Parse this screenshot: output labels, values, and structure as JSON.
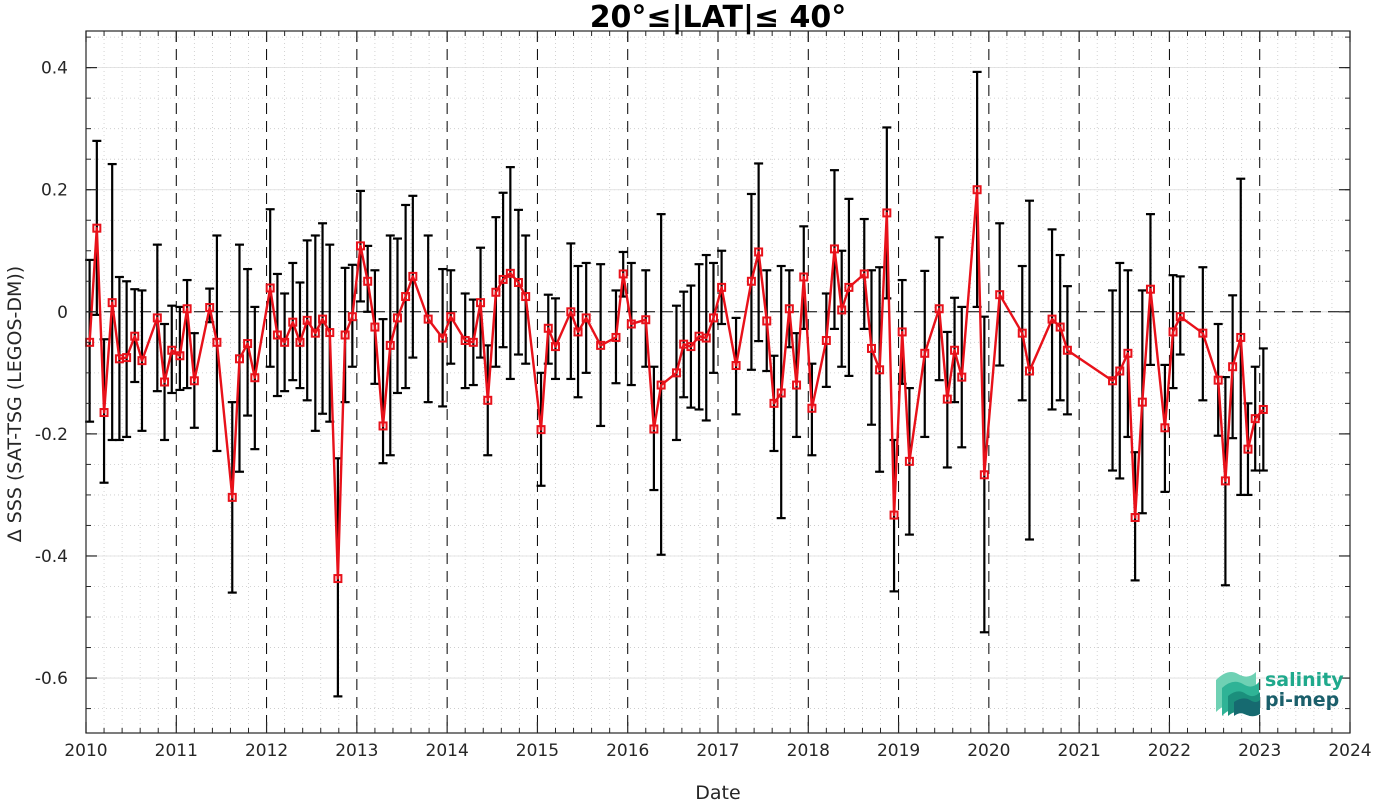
{
  "chart_data": {
    "type": "line",
    "title": "20°≤|LAT|≤ 40°",
    "xlabel": "Date",
    "ylabel": "Δ SSS (SAT-TSG (LEGOS-DM))",
    "xlim": [
      2010,
      2024
    ],
    "ylim": [
      -0.69,
      0.46
    ],
    "x_ticks": [
      2010,
      2011,
      2012,
      2013,
      2014,
      2015,
      2016,
      2017,
      2018,
      2019,
      2020,
      2021,
      2022,
      2023,
      2024
    ],
    "x_tick_labels": [
      "2010",
      "2011",
      "2012",
      "2013",
      "2014",
      "2015",
      "2016",
      "2017",
      "2018",
      "2019",
      "2020",
      "2021",
      "2022",
      "2023",
      "2024"
    ],
    "y_ticks": [
      -0.6,
      -0.4,
      -0.2,
      0,
      0.2,
      0.4
    ],
    "y_tick_labels": [
      "-0.6",
      "-0.4",
      "-0.2",
      "0",
      "0.2",
      "0.4"
    ],
    "grid": "minor dotted, dashed verticals at each year, dashed zero line",
    "series": [
      {
        "color": "#e8111a",
        "errorbar_color": "#000000",
        "points": [
          {
            "x": 2010.04,
            "y": -0.05,
            "lo": -0.18,
            "hi": 0.085
          },
          {
            "x": 2010.12,
            "y": 0.137,
            "lo": -0.005,
            "hi": 0.28
          },
          {
            "x": 2010.2,
            "y": -0.165,
            "lo": -0.28,
            "hi": -0.045
          },
          {
            "x": 2010.29,
            "y": 0.015,
            "lo": -0.21,
            "hi": 0.242
          },
          {
            "x": 2010.37,
            "y": -0.077,
            "lo": -0.21,
            "hi": 0.057
          },
          {
            "x": 2010.45,
            "y": -0.075,
            "lo": -0.205,
            "hi": 0.05
          },
          {
            "x": 2010.54,
            "y": -0.04,
            "lo": -0.115,
            "hi": 0.037
          },
          {
            "x": 2010.62,
            "y": -0.08,
            "lo": -0.195,
            "hi": 0.035
          },
          {
            "x": 2010.79,
            "y": -0.01,
            "lo": -0.13,
            "hi": 0.11
          },
          {
            "x": 2010.87,
            "y": -0.115,
            "lo": -0.21,
            "hi": -0.02
          },
          {
            "x": 2010.95,
            "y": -0.063,
            "lo": -0.133,
            "hi": 0.01
          },
          {
            "x": 2011.04,
            "y": -0.072,
            "lo": -0.128,
            "hi": 0.008
          },
          {
            "x": 2011.12,
            "y": 0.005,
            "lo": -0.125,
            "hi": 0.052
          },
          {
            "x": 2011.2,
            "y": -0.113,
            "lo": -0.19,
            "hi": -0.035
          },
          {
            "x": 2011.37,
            "y": 0.007,
            "lo": -0.017,
            "hi": 0.038
          },
          {
            "x": 2011.45,
            "y": -0.05,
            "lo": -0.228,
            "hi": 0.125
          },
          {
            "x": 2011.62,
            "y": -0.304,
            "lo": -0.46,
            "hi": -0.148
          },
          {
            "x": 2011.7,
            "y": -0.077,
            "lo": -0.262,
            "hi": 0.11
          },
          {
            "x": 2011.79,
            "y": -0.052,
            "lo": -0.17,
            "hi": 0.07
          },
          {
            "x": 2011.87,
            "y": -0.108,
            "lo": -0.225,
            "hi": 0.008
          },
          {
            "x": 2012.04,
            "y": 0.039,
            "lo": -0.09,
            "hi": 0.168
          },
          {
            "x": 2012.12,
            "y": -0.038,
            "lo": -0.138,
            "hi": 0.062
          },
          {
            "x": 2012.2,
            "y": -0.05,
            "lo": -0.13,
            "hi": 0.03
          },
          {
            "x": 2012.29,
            "y": -0.017,
            "lo": -0.112,
            "hi": 0.08
          },
          {
            "x": 2012.37,
            "y": -0.05,
            "lo": -0.125,
            "hi": 0.048
          },
          {
            "x": 2012.45,
            "y": -0.014,
            "lo": -0.145,
            "hi": 0.117
          },
          {
            "x": 2012.54,
            "y": -0.035,
            "lo": -0.195,
            "hi": 0.125
          },
          {
            "x": 2012.62,
            "y": -0.012,
            "lo": -0.167,
            "hi": 0.145
          },
          {
            "x": 2012.7,
            "y": -0.034,
            "lo": -0.18,
            "hi": 0.11
          },
          {
            "x": 2012.79,
            "y": -0.437,
            "lo": -0.63,
            "hi": -0.24
          },
          {
            "x": 2012.87,
            "y": -0.038,
            "lo": -0.148,
            "hi": 0.072
          },
          {
            "x": 2012.95,
            "y": -0.008,
            "lo": -0.09,
            "hi": 0.077
          },
          {
            "x": 2013.04,
            "y": 0.108,
            "lo": 0.017,
            "hi": 0.198
          },
          {
            "x": 2013.12,
            "y": 0.05,
            "lo": 0.0,
            "hi": 0.108
          },
          {
            "x": 2013.2,
            "y": -0.025,
            "lo": -0.118,
            "hi": 0.068
          },
          {
            "x": 2013.29,
            "y": -0.187,
            "lo": -0.248,
            "hi": -0.012
          },
          {
            "x": 2013.37,
            "y": -0.055,
            "lo": -0.235,
            "hi": 0.125
          },
          {
            "x": 2013.45,
            "y": -0.01,
            "lo": -0.133,
            "hi": 0.12
          },
          {
            "x": 2013.54,
            "y": 0.025,
            "lo": -0.125,
            "hi": 0.175
          },
          {
            "x": 2013.62,
            "y": 0.058,
            "lo": -0.075,
            "hi": 0.19
          },
          {
            "x": 2013.79,
            "y": -0.012,
            "lo": -0.148,
            "hi": 0.125
          },
          {
            "x": 2013.95,
            "y": -0.043,
            "lo": -0.155,
            "hi": 0.07
          },
          {
            "x": 2014.04,
            "y": -0.008,
            "lo": -0.085,
            "hi": 0.068
          },
          {
            "x": 2014.2,
            "y": -0.047,
            "lo": -0.125,
            "hi": 0.03
          },
          {
            "x": 2014.29,
            "y": -0.05,
            "lo": -0.12,
            "hi": 0.02
          },
          {
            "x": 2014.37,
            "y": 0.015,
            "lo": -0.075,
            "hi": 0.105
          },
          {
            "x": 2014.45,
            "y": -0.145,
            "lo": -0.235,
            "hi": -0.055
          },
          {
            "x": 2014.54,
            "y": 0.032,
            "lo": -0.09,
            "hi": 0.155
          },
          {
            "x": 2014.62,
            "y": 0.053,
            "lo": -0.058,
            "hi": 0.195
          },
          {
            "x": 2014.7,
            "y": 0.063,
            "lo": -0.11,
            "hi": 0.237
          },
          {
            "x": 2014.79,
            "y": 0.048,
            "lo": -0.07,
            "hi": 0.167
          },
          {
            "x": 2014.87,
            "y": 0.025,
            "lo": -0.085,
            "hi": 0.125
          },
          {
            "x": 2015.04,
            "y": -0.193,
            "lo": -0.285,
            "hi": -0.1
          },
          {
            "x": 2015.12,
            "y": -0.027,
            "lo": -0.085,
            "hi": 0.028
          },
          {
            "x": 2015.2,
            "y": -0.057,
            "lo": -0.11,
            "hi": 0.022
          },
          {
            "x": 2015.37,
            "y": 0.0,
            "lo": -0.11,
            "hi": 0.112
          },
          {
            "x": 2015.45,
            "y": -0.033,
            "lo": -0.14,
            "hi": 0.075
          },
          {
            "x": 2015.54,
            "y": -0.01,
            "lo": -0.1,
            "hi": 0.08
          },
          {
            "x": 2015.7,
            "y": -0.055,
            "lo": -0.187,
            "hi": 0.078
          },
          {
            "x": 2015.87,
            "y": -0.042,
            "lo": -0.117,
            "hi": 0.035
          },
          {
            "x": 2015.95,
            "y": 0.062,
            "lo": 0.025,
            "hi": 0.098
          },
          {
            "x": 2016.04,
            "y": -0.02,
            "lo": -0.12,
            "hi": 0.08
          },
          {
            "x": 2016.2,
            "y": -0.013,
            "lo": -0.09,
            "hi": 0.068
          },
          {
            "x": 2016.29,
            "y": -0.192,
            "lo": -0.292,
            "hi": -0.09
          },
          {
            "x": 2016.37,
            "y": -0.12,
            "lo": -0.398,
            "hi": 0.16
          },
          {
            "x": 2016.54,
            "y": -0.1,
            "lo": -0.21,
            "hi": 0.01
          },
          {
            "x": 2016.62,
            "y": -0.053,
            "lo": -0.14,
            "hi": 0.033
          },
          {
            "x": 2016.7,
            "y": -0.057,
            "lo": -0.157,
            "hi": 0.043
          },
          {
            "x": 2016.79,
            "y": -0.04,
            "lo": -0.16,
            "hi": 0.078
          },
          {
            "x": 2016.87,
            "y": -0.043,
            "lo": -0.178,
            "hi": 0.093
          },
          {
            "x": 2016.95,
            "y": -0.01,
            "lo": -0.1,
            "hi": 0.08
          },
          {
            "x": 2017.04,
            "y": 0.04,
            "lo": -0.02,
            "hi": 0.1
          },
          {
            "x": 2017.2,
            "y": -0.088,
            "lo": -0.168,
            "hi": -0.01
          },
          {
            "x": 2017.37,
            "y": 0.05,
            "lo": -0.095,
            "hi": 0.193
          },
          {
            "x": 2017.45,
            "y": 0.098,
            "lo": -0.048,
            "hi": 0.243
          },
          {
            "x": 2017.54,
            "y": -0.015,
            "lo": -0.097,
            "hi": 0.068
          },
          {
            "x": 2017.62,
            "y": -0.15,
            "lo": -0.228,
            "hi": -0.072
          },
          {
            "x": 2017.7,
            "y": -0.133,
            "lo": -0.338,
            "hi": 0.075
          },
          {
            "x": 2017.79,
            "y": 0.005,
            "lo": -0.058,
            "hi": 0.068
          },
          {
            "x": 2017.87,
            "y": -0.12,
            "lo": -0.205,
            "hi": -0.035
          },
          {
            "x": 2017.95,
            "y": 0.057,
            "lo": -0.028,
            "hi": 0.14
          },
          {
            "x": 2018.04,
            "y": -0.158,
            "lo": -0.235,
            "hi": -0.085
          },
          {
            "x": 2018.2,
            "y": -0.047,
            "lo": -0.123,
            "hi": 0.03
          },
          {
            "x": 2018.29,
            "y": 0.103,
            "lo": -0.028,
            "hi": 0.232
          },
          {
            "x": 2018.37,
            "y": 0.003,
            "lo": -0.09,
            "hi": 0.1
          },
          {
            "x": 2018.45,
            "y": 0.04,
            "lo": -0.105,
            "hi": 0.185
          },
          {
            "x": 2018.62,
            "y": 0.062,
            "lo": -0.028,
            "hi": 0.152
          },
          {
            "x": 2018.7,
            "y": -0.06,
            "lo": -0.185,
            "hi": 0.068
          },
          {
            "x": 2018.79,
            "y": -0.095,
            "lo": -0.262,
            "hi": 0.073
          },
          {
            "x": 2018.87,
            "y": 0.162,
            "lo": 0.022,
            "hi": 0.302
          },
          {
            "x": 2018.95,
            "y": -0.333,
            "lo": -0.458,
            "hi": -0.21
          },
          {
            "x": 2019.04,
            "y": -0.033,
            "lo": -0.118,
            "hi": 0.052
          },
          {
            "x": 2019.12,
            "y": -0.245,
            "lo": -0.365,
            "hi": -0.125
          },
          {
            "x": 2019.29,
            "y": -0.068,
            "lo": -0.205,
            "hi": 0.067
          },
          {
            "x": 2019.45,
            "y": 0.005,
            "lo": -0.112,
            "hi": 0.122
          },
          {
            "x": 2019.54,
            "y": -0.143,
            "lo": -0.255,
            "hi": -0.033
          },
          {
            "x": 2019.62,
            "y": -0.063,
            "lo": -0.148,
            "hi": 0.023
          },
          {
            "x": 2019.7,
            "y": -0.107,
            "lo": -0.222,
            "hi": 0.008
          },
          {
            "x": 2019.87,
            "y": 0.2,
            "lo": 0.008,
            "hi": 0.393
          },
          {
            "x": 2019.95,
            "y": -0.267,
            "lo": -0.525,
            "hi": -0.008
          },
          {
            "x": 2020.12,
            "y": 0.028,
            "lo": -0.088,
            "hi": 0.145
          },
          {
            "x": 2020.37,
            "y": -0.035,
            "lo": -0.145,
            "hi": 0.075
          },
          {
            "x": 2020.45,
            "y": -0.097,
            "lo": -0.373,
            "hi": 0.182
          },
          {
            "x": 2020.7,
            "y": -0.012,
            "lo": -0.16,
            "hi": 0.135
          },
          {
            "x": 2020.79,
            "y": -0.025,
            "lo": -0.145,
            "hi": 0.093
          },
          {
            "x": 2020.87,
            "y": -0.063,
            "lo": -0.168,
            "hi": 0.042
          },
          {
            "x": 2021.37,
            "y": -0.113,
            "lo": -0.26,
            "hi": 0.035
          },
          {
            "x": 2021.45,
            "y": -0.097,
            "lo": -0.273,
            "hi": 0.08
          },
          {
            "x": 2021.54,
            "y": -0.068,
            "lo": -0.205,
            "hi": 0.068
          },
          {
            "x": 2021.62,
            "y": -0.337,
            "lo": -0.44,
            "hi": -0.23
          },
          {
            "x": 2021.7,
            "y": -0.148,
            "lo": -0.33,
            "hi": 0.035
          },
          {
            "x": 2021.79,
            "y": 0.037,
            "lo": -0.087,
            "hi": 0.16
          },
          {
            "x": 2021.95,
            "y": -0.19,
            "lo": -0.295,
            "hi": -0.087
          },
          {
            "x": 2022.04,
            "y": -0.033,
            "lo": -0.125,
            "hi": 0.06
          },
          {
            "x": 2022.12,
            "y": -0.008,
            "lo": -0.07,
            "hi": 0.058
          },
          {
            "x": 2022.37,
            "y": -0.035,
            "lo": -0.145,
            "hi": 0.073
          },
          {
            "x": 2022.54,
            "y": -0.112,
            "lo": -0.203,
            "hi": -0.02
          },
          {
            "x": 2022.62,
            "y": -0.277,
            "lo": -0.448,
            "hi": -0.107
          },
          {
            "x": 2022.7,
            "y": -0.09,
            "lo": -0.207,
            "hi": 0.027
          },
          {
            "x": 2022.79,
            "y": -0.042,
            "lo": -0.3,
            "hi": 0.218
          },
          {
            "x": 2022.87,
            "y": -0.225,
            "lo": -0.3,
            "hi": -0.15
          },
          {
            "x": 2022.95,
            "y": -0.175,
            "lo": -0.26,
            "hi": -0.09
          },
          {
            "x": 2023.04,
            "y": -0.16,
            "lo": -0.26,
            "hi": -0.06
          }
        ]
      }
    ]
  },
  "logo": {
    "line1": "salinity",
    "line2": "pi-mep",
    "color1": "#1fa98c",
    "color2": "#1b5f6b"
  }
}
